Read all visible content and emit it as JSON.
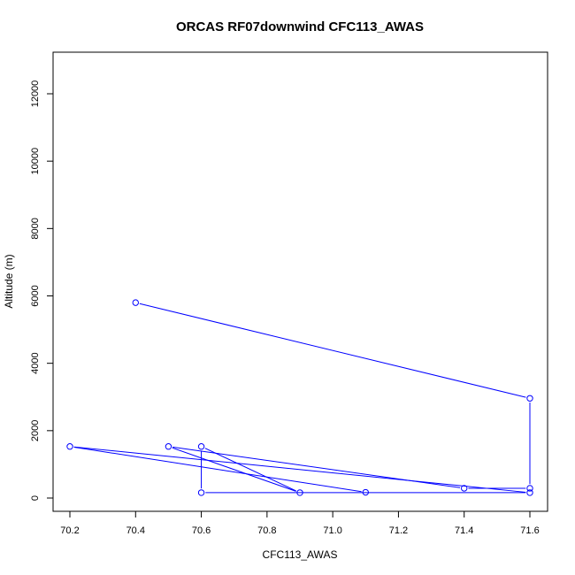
{
  "chart_data": {
    "type": "line",
    "title": "ORCAS RF07downwind CFC113_AWAS",
    "xlabel": "CFC113_AWAS",
    "ylabel": "Altitude (m)",
    "xlim": [
      70.2,
      71.6
    ],
    "ylim": [
      0,
      12000
    ],
    "x_ticks": [
      "70.2",
      "70.4",
      "70.6",
      "70.8",
      "71.0",
      "71.2",
      "71.4",
      "71.6"
    ],
    "y_ticks": [
      "0",
      "2000",
      "4000",
      "6000",
      "8000",
      "10000",
      "12000"
    ],
    "grid": false,
    "legend": "none",
    "series": [
      {
        "color": "#0000ff",
        "marker": "open-circle",
        "x": [
          70.4,
          71.6,
          71.6,
          71.4,
          70.5,
          70.9,
          70.6,
          70.6,
          71.6,
          70.2,
          71.1
        ],
        "y": [
          5800,
          2960,
          290,
          290,
          1530,
          160,
          1530,
          160,
          160,
          1530,
          170
        ]
      }
    ]
  }
}
